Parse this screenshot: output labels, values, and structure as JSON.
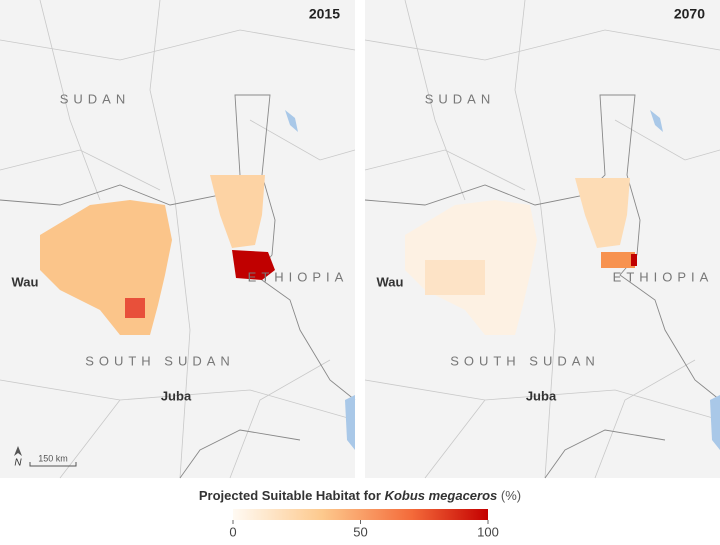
{
  "panels": [
    {
      "year": "2015",
      "labels": {
        "north_country": "SUDAN",
        "south_country": "SOUTH SUDAN",
        "east_country": "ETHIOPIA",
        "city_west": "Wau",
        "city_south": "Juba"
      }
    },
    {
      "year": "2070",
      "labels": {
        "north_country": "SUDAN",
        "south_country": "SOUTH SUDAN",
        "east_country": "ETHIOPIA",
        "city_west": "Wau",
        "city_south": "Juba"
      }
    }
  ],
  "north": "N",
  "scale_bar": "150 km",
  "legend": {
    "title": "Projected Suitable Habitat for",
    "species": "Kobus megaceros",
    "unit": "(%)",
    "lim": [
      0,
      100
    ],
    "ticks": [
      0,
      50,
      100
    ]
  }
}
